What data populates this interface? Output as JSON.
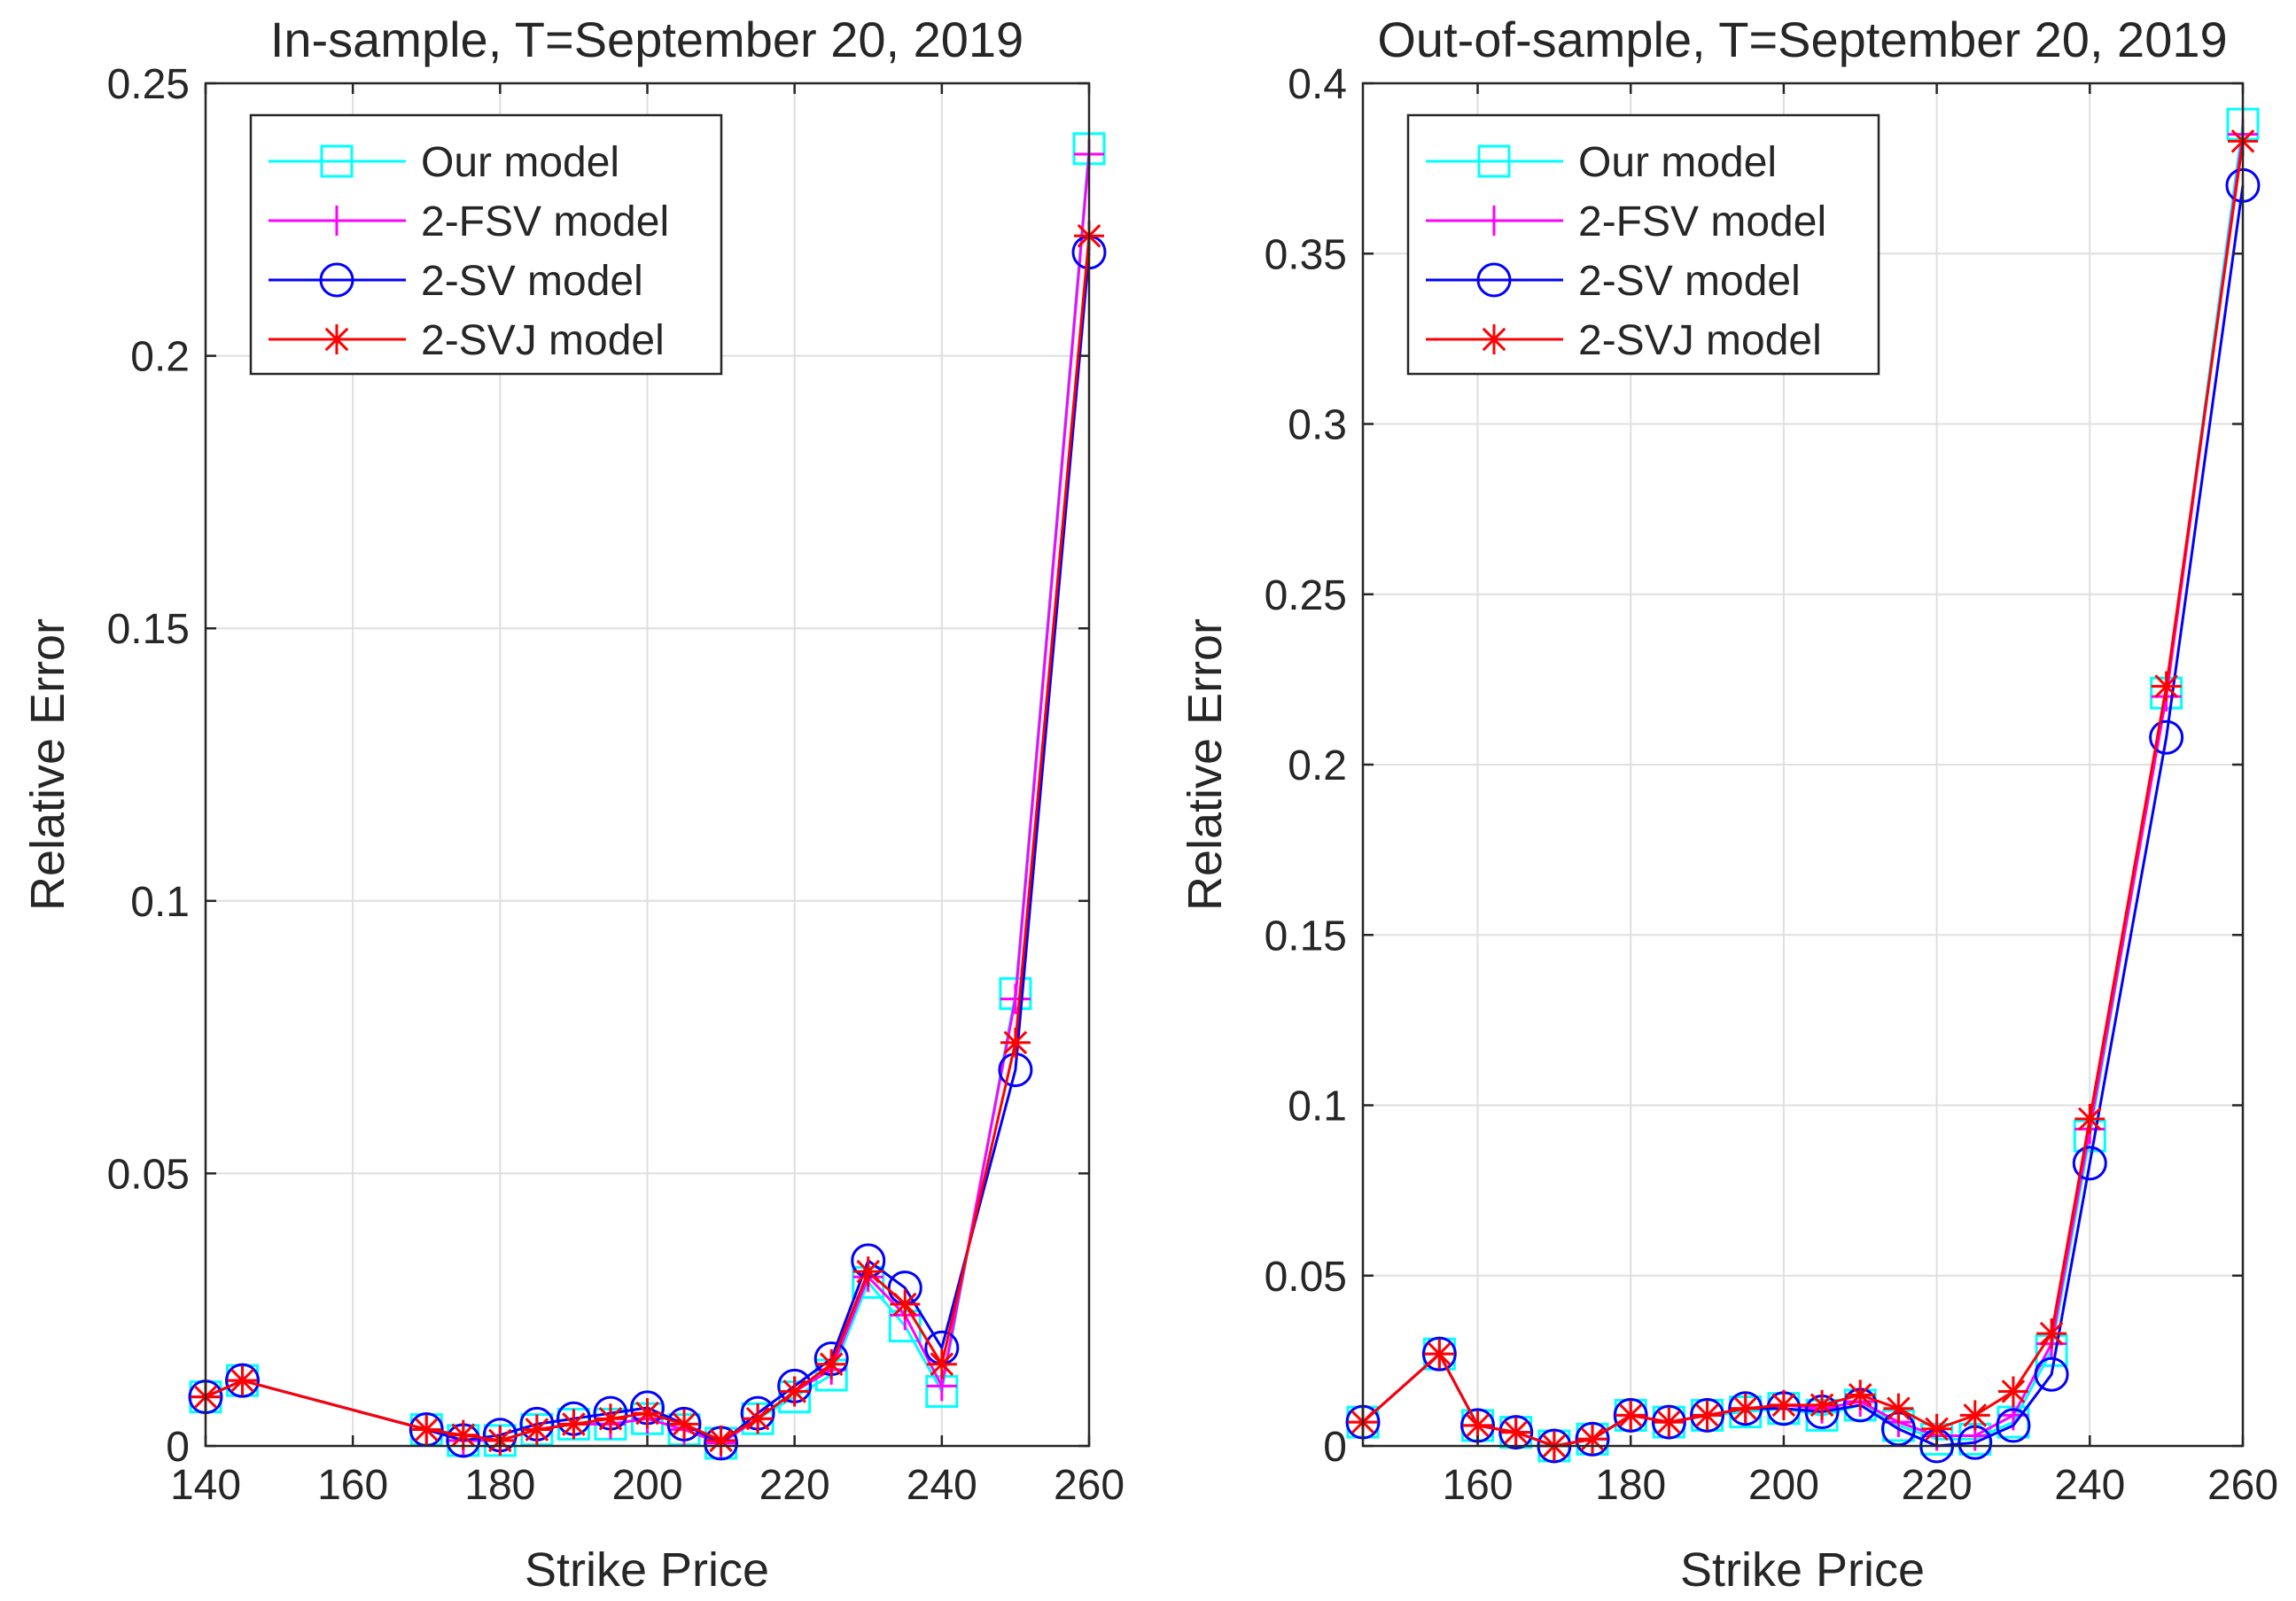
{
  "figure": {
    "description_free": true
  },
  "chart_data": [
    {
      "type": "line",
      "title": "In-sample, T=September 20, 2019",
      "xlabel": "Strike Price",
      "ylabel": "Relative Error",
      "xlim": [
        140,
        260
      ],
      "ylim": [
        0,
        0.25
      ],
      "xticks": [
        140,
        160,
        180,
        200,
        220,
        240,
        260
      ],
      "xtick_labels": [
        "140",
        "160",
        "180",
        "200",
        "220",
        "240",
        "260"
      ],
      "yticks": [
        0,
        0.05,
        0.1,
        0.15,
        0.2,
        0.25
      ],
      "ytick_labels": [
        "0",
        "0.05",
        "0.1",
        "0.15",
        "0.2",
        "0.25"
      ],
      "grid": true,
      "legend_position": "top-left",
      "x": [
        140,
        145,
        170,
        175,
        180,
        185,
        190,
        195,
        200,
        205,
        210,
        215,
        220,
        225,
        230,
        235,
        240,
        250,
        260
      ],
      "series": [
        {
          "name": "Our model",
          "color": "#00ffff",
          "marker": "square",
          "values": [
            0.009,
            0.012,
            0.003,
            0.001,
            0.001,
            0.003,
            0.004,
            0.004,
            0.005,
            0.003,
            0.0005,
            0.005,
            0.009,
            0.013,
            0.03,
            0.022,
            0.01,
            0.083,
            0.238
          ]
        },
        {
          "name": "2-FSV model",
          "color": "#ff00ff",
          "marker": "plus",
          "values": [
            0.009,
            0.012,
            0.003,
            0.001,
            0.001,
            0.003,
            0.004,
            0.004,
            0.005,
            0.003,
            0.0005,
            0.005,
            0.01,
            0.014,
            0.031,
            0.024,
            0.011,
            0.082,
            0.237
          ]
        },
        {
          "name": "2-SV model",
          "color": "#0000ff",
          "marker": "circle",
          "values": [
            0.009,
            0.012,
            0.003,
            0.001,
            0.002,
            0.004,
            0.005,
            0.006,
            0.007,
            0.004,
            0.0005,
            0.006,
            0.011,
            0.016,
            0.034,
            0.029,
            0.018,
            0.069,
            0.219
          ]
        },
        {
          "name": "2-SVJ model",
          "color": "#ff0000",
          "marker": "asterisk",
          "values": [
            0.009,
            0.012,
            0.003,
            0.002,
            0.001,
            0.003,
            0.004,
            0.005,
            0.006,
            0.004,
            0.001,
            0.005,
            0.01,
            0.015,
            0.032,
            0.026,
            0.015,
            0.074,
            0.222
          ]
        }
      ]
    },
    {
      "type": "line",
      "title": "Out-of-sample, T=September 20, 2019",
      "xlabel": "Strike Price",
      "ylabel": "Relative Error",
      "xlim": [
        145,
        260
      ],
      "ylim": [
        0,
        0.4
      ],
      "xticks": [
        160,
        180,
        200,
        220,
        240,
        260
      ],
      "xtick_labels": [
        "160",
        "180",
        "200",
        "220",
        "240",
        "260"
      ],
      "yticks": [
        0,
        0.05,
        0.1,
        0.15,
        0.2,
        0.25,
        0.3,
        0.35,
        0.4
      ],
      "ytick_labels": [
        "0",
        "0.05",
        "0.1",
        "0.15",
        "0.2",
        "0.25",
        "0.3",
        "0.35",
        "0.4"
      ],
      "grid": true,
      "legend_position": "top-left",
      "x": [
        145,
        155,
        160,
        165,
        170,
        175,
        180,
        185,
        190,
        195,
        200,
        205,
        210,
        215,
        220,
        225,
        230,
        235,
        240,
        250,
        260
      ],
      "series": [
        {
          "name": "Our model",
          "color": "#00ffff",
          "marker": "square",
          "values": [
            0.007,
            0.027,
            0.006,
            0.004,
            0.0,
            0.002,
            0.009,
            0.007,
            0.009,
            0.01,
            0.011,
            0.009,
            0.012,
            0.006,
            0.002,
            0.002,
            0.007,
            0.028,
            0.091,
            0.221,
            0.388
          ]
        },
        {
          "name": "2-FSV model",
          "color": "#ff00ff",
          "marker": "plus",
          "values": [
            0.007,
            0.027,
            0.006,
            0.004,
            0.0,
            0.002,
            0.009,
            0.007,
            0.009,
            0.011,
            0.012,
            0.011,
            0.013,
            0.007,
            0.003,
            0.003,
            0.009,
            0.03,
            0.093,
            0.22,
            0.385
          ]
        },
        {
          "name": "2-SV model",
          "color": "#0000ff",
          "marker": "circle",
          "values": [
            0.007,
            0.027,
            0.006,
            0.004,
            0.0,
            0.002,
            0.009,
            0.007,
            0.009,
            0.011,
            0.011,
            0.01,
            0.012,
            0.005,
            0.0,
            0.001,
            0.006,
            0.021,
            0.083,
            0.208,
            0.37
          ]
        },
        {
          "name": "2-SVJ model",
          "color": "#ff0000",
          "marker": "asterisk",
          "values": [
            0.007,
            0.027,
            0.006,
            0.004,
            0.0,
            0.002,
            0.009,
            0.007,
            0.009,
            0.011,
            0.012,
            0.012,
            0.015,
            0.011,
            0.005,
            0.009,
            0.016,
            0.033,
            0.096,
            0.223,
            0.383
          ]
        }
      ]
    }
  ]
}
